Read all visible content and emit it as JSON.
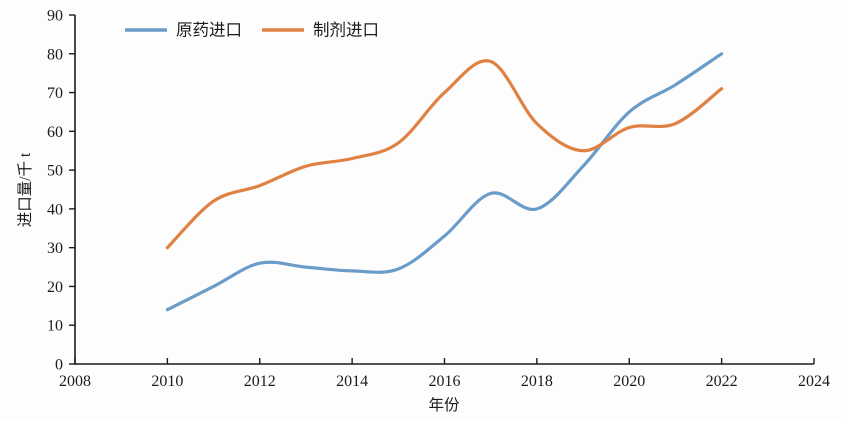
{
  "chart_data": {
    "type": "line",
    "title": "",
    "xlabel": "年份",
    "ylabel": "进口量/千 t",
    "xlim": [
      2008,
      2024
    ],
    "ylim": [
      0,
      90
    ],
    "x_ticks": [
      2008,
      2010,
      2012,
      2014,
      2016,
      2018,
      2020,
      2022,
      2024
    ],
    "y_ticks": [
      0,
      10,
      20,
      30,
      40,
      50,
      60,
      70,
      80,
      90
    ],
    "grid": false,
    "legend_position": "top-inside-left",
    "axis_color": "#1b1b1b",
    "x": [
      2010,
      2011,
      2012,
      2013,
      2014,
      2015,
      2016,
      2017,
      2018,
      2019,
      2020,
      2021,
      2022
    ],
    "series": [
      {
        "name": "原药进口",
        "color": "#6A9CC9",
        "values": [
          14,
          20,
          26,
          25,
          24,
          24.5,
          33,
          44,
          40,
          51,
          65,
          72,
          80
        ]
      },
      {
        "name": "制剂进口",
        "color": "#DE8143",
        "values": [
          30,
          42,
          46,
          51,
          53,
          57,
          70,
          78,
          62,
          55,
          61,
          62,
          71
        ]
      }
    ]
  }
}
